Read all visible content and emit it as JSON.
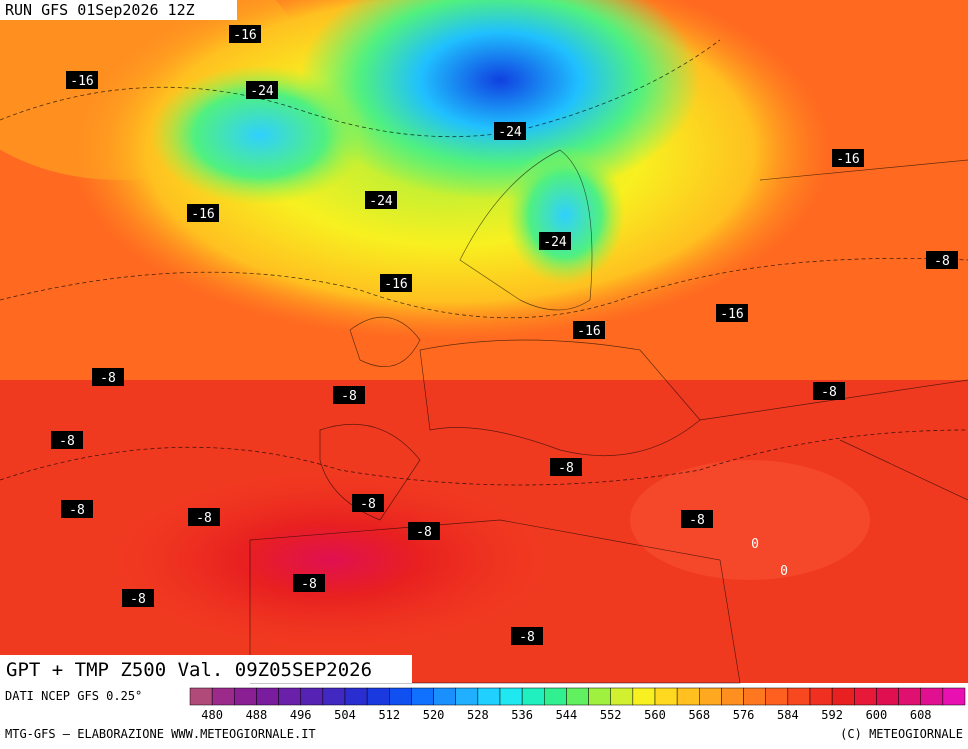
{
  "header": {
    "run": "RUN GFS 01Sep2026 12Z"
  },
  "map": {
    "title": "GPT + TMP Z500 Val. 09Z05SEP2026",
    "contour_labels": [
      -16,
      -16,
      -24,
      -24,
      -16,
      -24,
      -16,
      -24,
      -8,
      -16,
      -16,
      -16,
      -8,
      -8,
      -8,
      -8,
      -8,
      -8,
      -8,
      -8,
      -8,
      -8,
      0,
      0,
      -8,
      -8,
      -8
    ]
  },
  "footer": {
    "source": "DATI NCEP GFS 0.25°",
    "credit": "MTG-GFS — ELABORAZIONE WWW.METEOGIORNALE.IT",
    "copyright": "(C) METEOGIORNALE"
  },
  "colorbar": {
    "ticks": [
      480,
      488,
      496,
      504,
      512,
      520,
      528,
      536,
      544,
      552,
      560,
      568,
      576,
      584,
      592,
      600,
      608
    ],
    "colors": [
      "#b04a78",
      "#9c2a8a",
      "#8a1f94",
      "#7a1c9e",
      "#6a20a8",
      "#5522b4",
      "#4028c0",
      "#2a2ed0",
      "#1a3ae0",
      "#1050f0",
      "#1070ff",
      "#1a90ff",
      "#20b0ff",
      "#20d0ff",
      "#20e8f0",
      "#20f0c0",
      "#30f090",
      "#60f060",
      "#a0f040",
      "#d0f030",
      "#f8f020",
      "#ffd820",
      "#ffc020",
      "#ffa820",
      "#ff9020",
      "#ff7820",
      "#ff6020",
      "#f84820",
      "#f03020",
      "#e82020",
      "#e81838",
      "#e01050",
      "#e01070",
      "#e01090",
      "#e810b0"
    ]
  }
}
